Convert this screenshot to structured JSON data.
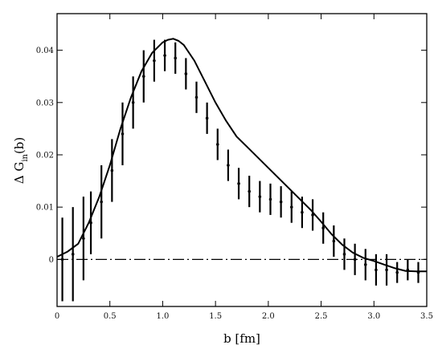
{
  "chart_data": {
    "type": "scatter",
    "xlabel": "b [fm]",
    "ylabel": "Δ G",
    "ylabel_subscript": "in",
    "ylabel_suffix": "(b)",
    "xlim": [
      0,
      3.5
    ],
    "ylim": [
      -0.009,
      0.047
    ],
    "x_ticks": [
      {
        "value": 0,
        "label": "0"
      },
      {
        "value": 0.5,
        "label": "0.5"
      },
      {
        "value": 1.0,
        "label": "1.0"
      },
      {
        "value": 1.5,
        "label": "1.5"
      },
      {
        "value": 2.0,
        "label": "2.0"
      },
      {
        "value": 2.5,
        "label": "2.5"
      },
      {
        "value": 3.0,
        "label": "3.0"
      },
      {
        "value": 3.5,
        "label": "3.5"
      }
    ],
    "y_ticks": [
      {
        "value": 0,
        "label": "0"
      },
      {
        "value": 0.01,
        "label": "0.01"
      },
      {
        "value": 0.02,
        "label": "0.02"
      },
      {
        "value": 0.03,
        "label": "0.03"
      },
      {
        "value": 0.04,
        "label": "0.04"
      }
    ],
    "series": [
      {
        "style": "points-with-error-bars",
        "color": "#000000",
        "points": [
          {
            "x": 0.05,
            "y": 0.0,
            "err": 0.008
          },
          {
            "x": 0.15,
            "y": 0.001,
            "err": 0.009
          },
          {
            "x": 0.25,
            "y": 0.004,
            "err": 0.008
          },
          {
            "x": 0.32,
            "y": 0.007,
            "err": 0.006
          },
          {
            "x": 0.42,
            "y": 0.011,
            "err": 0.007
          },
          {
            "x": 0.52,
            "y": 0.017,
            "err": 0.006
          },
          {
            "x": 0.62,
            "y": 0.024,
            "err": 0.006
          },
          {
            "x": 0.72,
            "y": 0.03,
            "err": 0.005
          },
          {
            "x": 0.82,
            "y": 0.035,
            "err": 0.005
          },
          {
            "x": 0.92,
            "y": 0.038,
            "err": 0.004
          },
          {
            "x": 1.02,
            "y": 0.039,
            "err": 0.003
          },
          {
            "x": 1.12,
            "y": 0.0385,
            "err": 0.003
          },
          {
            "x": 1.22,
            "y": 0.0355,
            "err": 0.003
          },
          {
            "x": 1.32,
            "y": 0.031,
            "err": 0.003
          },
          {
            "x": 1.42,
            "y": 0.027,
            "err": 0.003
          },
          {
            "x": 1.52,
            "y": 0.022,
            "err": 0.003
          },
          {
            "x": 1.62,
            "y": 0.018,
            "err": 0.003
          },
          {
            "x": 1.72,
            "y": 0.0145,
            "err": 0.003
          },
          {
            "x": 1.82,
            "y": 0.013,
            "err": 0.003
          },
          {
            "x": 1.92,
            "y": 0.012,
            "err": 0.003
          },
          {
            "x": 2.02,
            "y": 0.0115,
            "err": 0.003
          },
          {
            "x": 2.12,
            "y": 0.011,
            "err": 0.003
          },
          {
            "x": 2.22,
            "y": 0.01,
            "err": 0.003
          },
          {
            "x": 2.32,
            "y": 0.009,
            "err": 0.003
          },
          {
            "x": 2.42,
            "y": 0.0085,
            "err": 0.003
          },
          {
            "x": 2.52,
            "y": 0.006,
            "err": 0.003
          },
          {
            "x": 2.62,
            "y": 0.0035,
            "err": 0.003
          },
          {
            "x": 2.72,
            "y": 0.001,
            "err": 0.003
          },
          {
            "x": 2.82,
            "y": 0.0,
            "err": 0.003
          },
          {
            "x": 2.92,
            "y": -0.001,
            "err": 0.003
          },
          {
            "x": 3.02,
            "y": -0.002,
            "err": 0.003
          },
          {
            "x": 3.12,
            "y": -0.002,
            "err": 0.003
          },
          {
            "x": 3.22,
            "y": -0.0025,
            "err": 0.002
          },
          {
            "x": 3.32,
            "y": -0.002,
            "err": 0.002
          },
          {
            "x": 3.42,
            "y": -0.0025,
            "err": 0.002
          }
        ]
      },
      {
        "style": "solid-curve",
        "color": "#000000",
        "x": [
          0,
          0.1,
          0.2,
          0.3,
          0.4,
          0.5,
          0.6,
          0.7,
          0.8,
          0.9,
          1.0,
          1.05,
          1.1,
          1.15,
          1.2,
          1.3,
          1.4,
          1.5,
          1.6,
          1.7,
          1.8,
          1.9,
          2.0,
          2.1,
          2.2,
          2.3,
          2.4,
          2.5,
          2.6,
          2.7,
          2.8,
          2.9,
          3.0,
          3.1,
          3.2,
          3.3,
          3.4,
          3.5
        ],
        "y": [
          0.0005,
          0.0015,
          0.003,
          0.007,
          0.012,
          0.018,
          0.025,
          0.031,
          0.036,
          0.0395,
          0.0415,
          0.042,
          0.0422,
          0.0418,
          0.041,
          0.038,
          0.034,
          0.03,
          0.0265,
          0.0235,
          0.0215,
          0.0195,
          0.0175,
          0.0155,
          0.0135,
          0.0115,
          0.0095,
          0.0072,
          0.0048,
          0.0028,
          0.0013,
          0.0003,
          -0.0003,
          -0.001,
          -0.0017,
          -0.0022,
          -0.0023,
          -0.0023
        ]
      },
      {
        "style": "dash-dot-zero-line",
        "color": "#000000",
        "x": [
          0,
          3.5
        ],
        "y": [
          0,
          0
        ]
      }
    ],
    "grid": false
  }
}
